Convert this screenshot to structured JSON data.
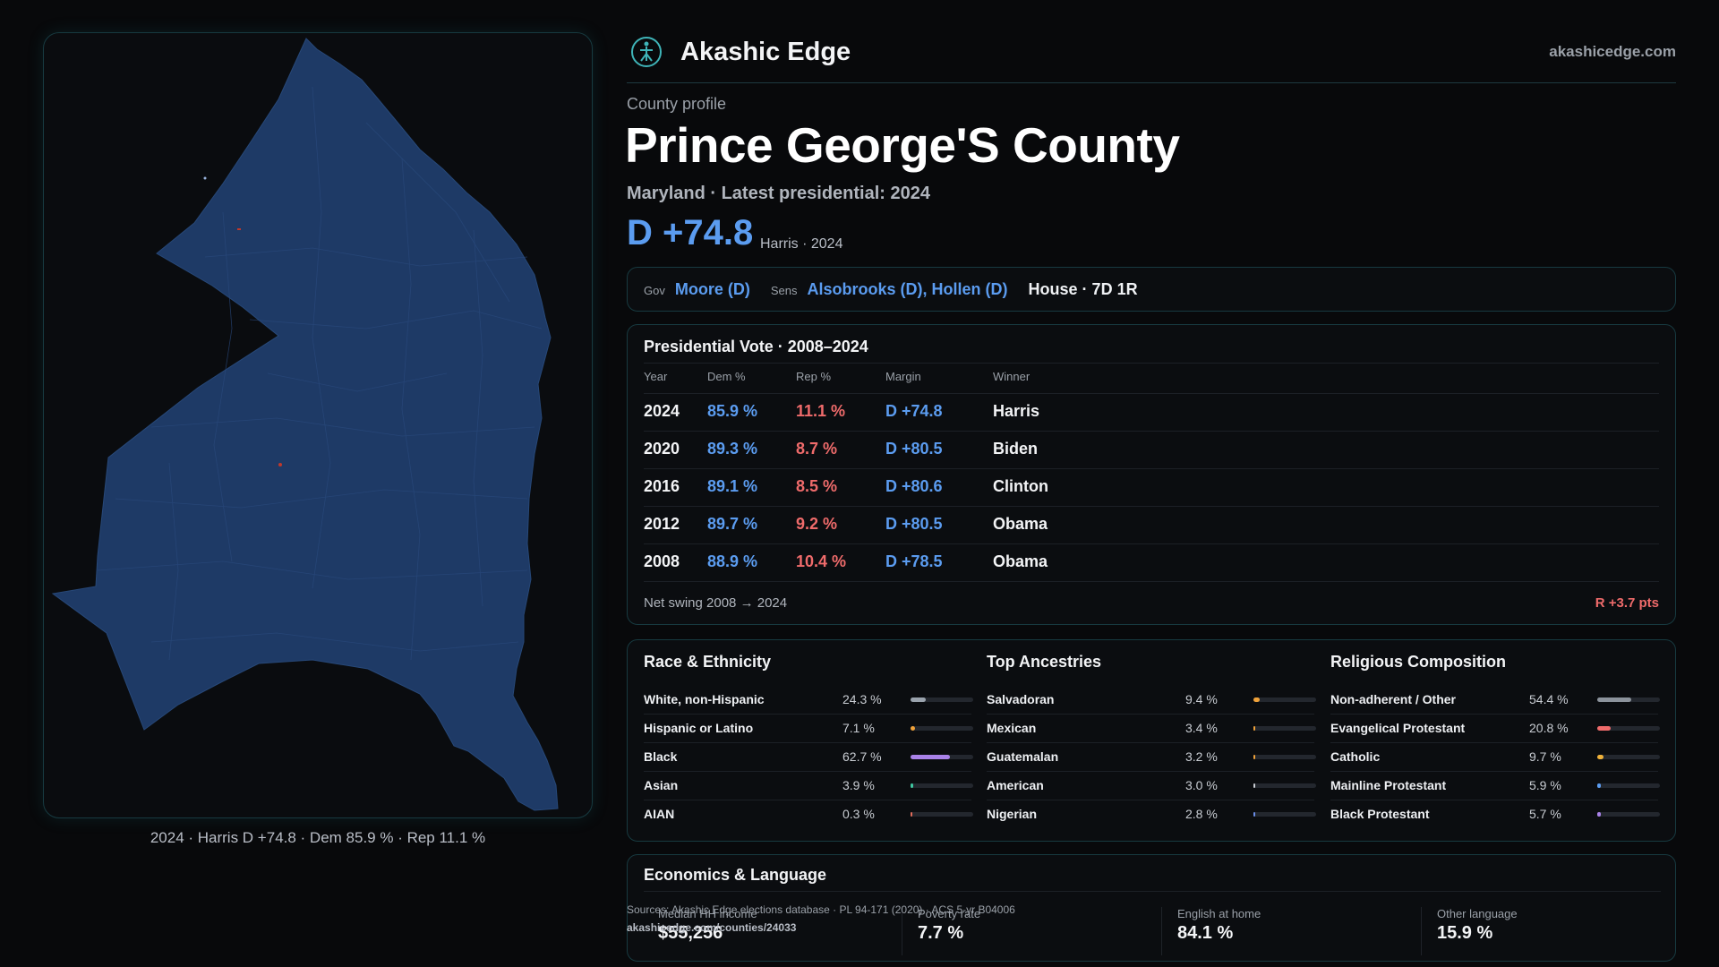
{
  "brand": {
    "name": "Akashic Edge",
    "site": "akashicedge.com",
    "logo_icon": "compass-star-icon"
  },
  "profile": {
    "eyebrow": "County profile",
    "title": "Prince George'S County",
    "subtitle": "Maryland · Latest presidential: 2024",
    "margin": "D +74.8",
    "margin_note": "Harris · 2024"
  },
  "officials": {
    "gov_label": "Gov",
    "gov": "Moore (D)",
    "sens_label": "Sens",
    "sens": "Alsobrooks (D), Hollen (D)",
    "house": "House · 7D 1R"
  },
  "presidential": {
    "title": "Presidential Vote · 2008–2024",
    "headers": {
      "year": "Year",
      "dem": "Dem %",
      "rep": "Rep %",
      "margin": "Margin",
      "winner": "Winner"
    },
    "rows": [
      {
        "year": "2024",
        "dem": "85.9 %",
        "rep": "11.1 %",
        "margin": "D +74.8",
        "winner": "Harris"
      },
      {
        "year": "2020",
        "dem": "89.3 %",
        "rep": "8.7 %",
        "margin": "D +80.5",
        "winner": "Biden"
      },
      {
        "year": "2016",
        "dem": "89.1 %",
        "rep": "8.5 %",
        "margin": "D +80.6",
        "winner": "Clinton"
      },
      {
        "year": "2012",
        "dem": "89.7 %",
        "rep": "9.2 %",
        "margin": "D +80.5",
        "winner": "Obama"
      },
      {
        "year": "2008",
        "dem": "88.9 %",
        "rep": "10.4 %",
        "margin": "D +78.5",
        "winner": "Obama"
      }
    ],
    "swing_label": "Net swing 2008 → 2024",
    "swing_value": "R +3.7 pts"
  },
  "race": {
    "title": "Race & Ethnicity",
    "items": [
      {
        "name": "White, non-Hispanic",
        "value": "24.3 %",
        "fraction": 0.243,
        "color": "#9aa3ad"
      },
      {
        "name": "Hispanic or Latino",
        "value": "7.1 %",
        "fraction": 0.071,
        "color": "#f0a23a"
      },
      {
        "name": "Black",
        "value": "62.7 %",
        "fraction": 0.627,
        "color": "#a982e8"
      },
      {
        "name": "Asian",
        "value": "3.9 %",
        "fraction": 0.039,
        "color": "#3fc6a0"
      },
      {
        "name": "AIAN",
        "value": "0.3 %",
        "fraction": 0.003,
        "color": "#e06b5a"
      }
    ]
  },
  "ancestry": {
    "title": "Top Ancestries",
    "items": [
      {
        "name": "Salvadoran",
        "value": "9.4 %",
        "fraction": 0.094,
        "color": "#f0a23a"
      },
      {
        "name": "Mexican",
        "value": "3.4 %",
        "fraction": 0.034,
        "color": "#f0a23a"
      },
      {
        "name": "Guatemalan",
        "value": "3.2 %",
        "fraction": 0.032,
        "color": "#f0a23a"
      },
      {
        "name": "American",
        "value": "3.0 %",
        "fraction": 0.03,
        "color": "#c9cdd3"
      },
      {
        "name": "Nigerian",
        "value": "2.8 %",
        "fraction": 0.028,
        "color": "#6a8de8"
      }
    ]
  },
  "religion": {
    "title": "Religious Composition",
    "items": [
      {
        "name": "Non-adherent / Other",
        "value": "54.4 %",
        "fraction": 0.544,
        "color": "#8c939c"
      },
      {
        "name": "Evangelical Protestant",
        "value": "20.8 %",
        "fraction": 0.208,
        "color": "#ef6b6b"
      },
      {
        "name": "Catholic",
        "value": "9.7 %",
        "fraction": 0.097,
        "color": "#f0b23a"
      },
      {
        "name": "Mainline Protestant",
        "value": "5.9 %",
        "fraction": 0.059,
        "color": "#5b9cf0"
      },
      {
        "name": "Black Protestant",
        "value": "5.7 %",
        "fraction": 0.057,
        "color": "#a982e8"
      }
    ]
  },
  "economics": {
    "title": "Economics & Language",
    "stats": [
      {
        "label": "Median HH income",
        "value": "$55,256"
      },
      {
        "label": "Poverty rate",
        "value": "7.7 %"
      },
      {
        "label": "English at home",
        "value": "84.1 %"
      },
      {
        "label": "Other language",
        "value": "15.9 %"
      }
    ]
  },
  "sources": {
    "line": "Sources: Akashic Edge elections database · PL 94-171 (2020) · ACS 5-yr B04006",
    "url": "akashicedge.com/counties/24033"
  },
  "map": {
    "caption": "2024 · Harris D +74.8 · Dem 85.9 % · Rep 11.1 %",
    "fill_color": "#1e3a66"
  }
}
